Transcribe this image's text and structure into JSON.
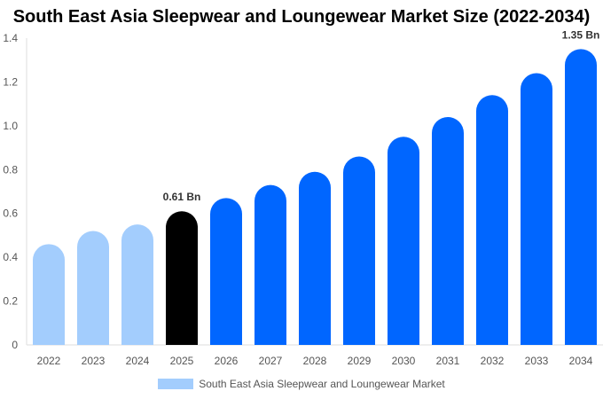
{
  "chart_data": {
    "type": "bar",
    "title": "South East Asia Sleepwear and Loungewear Market Size (2022-2034)",
    "categories": [
      "2022",
      "2023",
      "2024",
      "2025",
      "2026",
      "2027",
      "2028",
      "2029",
      "2030",
      "2031",
      "2032",
      "2033",
      "2034"
    ],
    "series": [
      {
        "name": "South East Asia Sleepwear and Loungewear Market",
        "values": [
          0.46,
          0.52,
          0.55,
          0.61,
          0.67,
          0.73,
          0.79,
          0.86,
          0.95,
          1.04,
          1.14,
          1.24,
          1.35
        ]
      }
    ],
    "ylim": [
      0,
      1.4
    ],
    "yticks": [
      "0",
      "0.2",
      "0.4",
      "0.6",
      "0.8",
      "1.0",
      "1.2",
      "1.4"
    ],
    "annotations": [
      {
        "category": "2025",
        "text": "0.61 Bn"
      },
      {
        "category": "2034",
        "text": "1.35 Bn"
      }
    ],
    "colors": {
      "historical": "#a3cdfd",
      "base_year": "#000000",
      "forecast": "#0066ff"
    },
    "grid": false,
    "legend": "bottom"
  }
}
